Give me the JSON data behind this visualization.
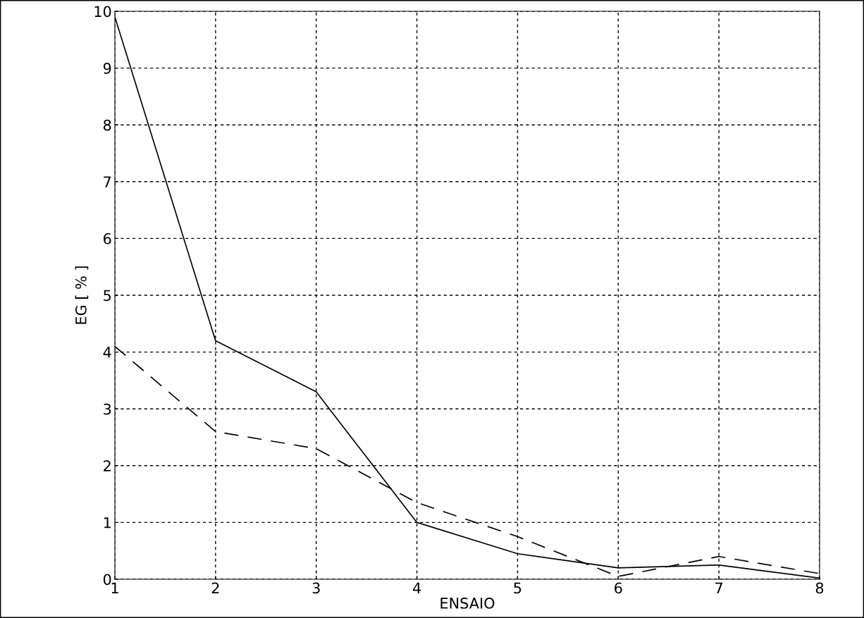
{
  "chart_data": {
    "type": "line",
    "xlabel": "ENSAIO",
    "ylabel": "EG [ % ]",
    "x": [
      1,
      2,
      3,
      4,
      5,
      6,
      7,
      8
    ],
    "series": [
      {
        "color": "#000000",
        "line_style": "solid",
        "values": [
          9.9,
          4.2,
          3.3,
          1.0,
          0.45,
          0.2,
          0.25,
          0.02
        ]
      },
      {
        "color": "#000000",
        "line_style": "dashed",
        "values": [
          4.1,
          2.6,
          2.3,
          1.35,
          0.75,
          0.05,
          0.4,
          0.1
        ]
      }
    ],
    "xlim": [
      1,
      8
    ],
    "xticks": [
      1,
      2,
      3,
      4,
      5,
      6,
      7,
      8
    ],
    "ylim": [
      0,
      10
    ],
    "yticks": [
      0,
      1,
      2,
      3,
      4,
      5,
      6,
      7,
      8,
      9,
      10
    ],
    "grid": true,
    "legend": false
  }
}
